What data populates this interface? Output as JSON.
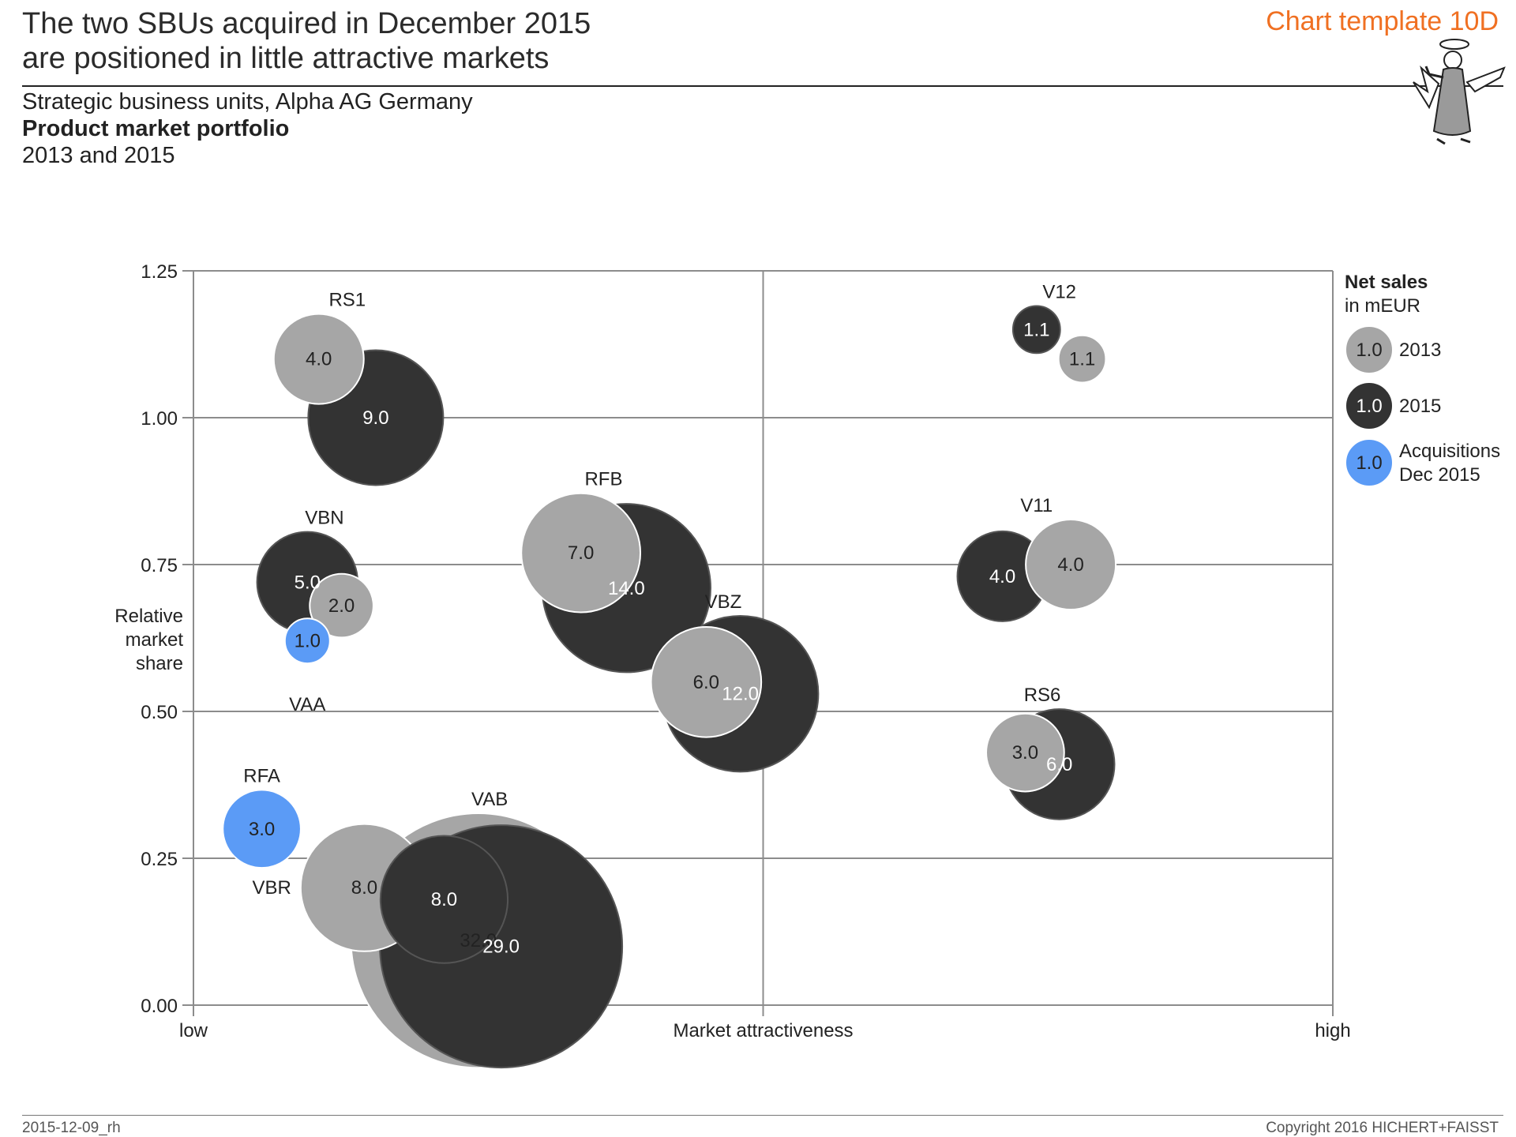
{
  "header": {
    "title_line1": "The two SBUs acquired in December 2015",
    "title_line2": "are positioned in little attractive markets",
    "template_label": "Chart template 10D",
    "subtitle_line1": "Strategic business units, Alpha AG Germany",
    "subtitle_line2": "Product market portfolio",
    "subtitle_line3": "2013 and 2015"
  },
  "footer": {
    "date_code": "2015-12-09_rh",
    "copyright": "Copyright 2016 HICHERT+FAISST"
  },
  "colors": {
    "y2013": "#a6a6a6",
    "y2015": "#333333",
    "acquisition": "#5b9bf6",
    "grid": "#8c8c8c"
  },
  "chart_data": {
    "type": "bubble",
    "title": "Product market portfolio",
    "xlabel": "Market attractiveness",
    "xlabel_low": "low",
    "xlabel_high": "high",
    "ylabel": [
      "Relative",
      "market",
      "share"
    ],
    "xlim": [
      0,
      1
    ],
    "ylim": [
      0,
      1.25
    ],
    "yticks": [
      "0.00",
      "0.25",
      "0.50",
      "0.75",
      "1.00",
      "1.25"
    ],
    "ytick_values": [
      0,
      0.25,
      0.5,
      0.75,
      1.0,
      1.25
    ],
    "size_measure": "Net sales in mEUR",
    "legend": {
      "title": "Net sales",
      "unit": "in mEUR",
      "sample_value": "1.0",
      "items": [
        {
          "kind": "y2013",
          "label_lines": [
            "2013"
          ]
        },
        {
          "kind": "y2015",
          "label_lines": [
            "2015"
          ]
        },
        {
          "kind": "acquisition",
          "label_lines": [
            "Acquisitions",
            "Dec 2015"
          ]
        }
      ]
    },
    "units": [
      {
        "name": "VAB",
        "label_pos": "above",
        "circles": [
          {
            "kind": "y2013",
            "x": 0.25,
            "y": 0.11,
            "value": 32.0,
            "label": "32.0"
          },
          {
            "kind": "y2015",
            "x": 0.27,
            "y": 0.1,
            "value": 29.0,
            "label": "29.0"
          }
        ]
      },
      {
        "name": "VBR",
        "label_pos": "left",
        "circles": [
          {
            "kind": "y2013",
            "x": 0.15,
            "y": 0.2,
            "value": 8.0,
            "label": "8.0"
          },
          {
            "kind": "y2015",
            "x": 0.22,
            "y": 0.18,
            "value": 8.0,
            "label": "8.0"
          }
        ]
      },
      {
        "name": "RFA",
        "label_pos": "above",
        "circles": [
          {
            "kind": "acquisition",
            "x": 0.06,
            "y": 0.3,
            "value": 3.0,
            "label": "3.0"
          }
        ]
      },
      {
        "name": "RS1",
        "label_pos": "above",
        "circles": [
          {
            "kind": "y2015",
            "x": 0.16,
            "y": 1.0,
            "value": 9.0,
            "label": "9.0"
          },
          {
            "kind": "y2013",
            "x": 0.11,
            "y": 1.1,
            "value": 4.0,
            "label": "4.0"
          }
        ]
      },
      {
        "name": "VBN",
        "label_pos": "above",
        "circles": [
          {
            "kind": "y2015",
            "x": 0.1,
            "y": 0.72,
            "value": 5.0,
            "label": "5.0"
          },
          {
            "kind": "y2013",
            "x": 0.13,
            "y": 0.68,
            "value": 2.0,
            "label": "2.0"
          }
        ]
      },
      {
        "name": "VAA",
        "label_pos": "below",
        "circles": [
          {
            "kind": "acquisition",
            "x": 0.1,
            "y": 0.62,
            "value": 1.0,
            "label": "1.0"
          }
        ]
      },
      {
        "name": "RFB",
        "label_pos": "above",
        "circles": [
          {
            "kind": "y2015",
            "x": 0.38,
            "y": 0.71,
            "value": 14.0,
            "label": "14.0"
          },
          {
            "kind": "y2013",
            "x": 0.34,
            "y": 0.77,
            "value": 7.0,
            "label": "7.0"
          }
        ]
      },
      {
        "name": "VBZ",
        "label_pos": "above",
        "circles": [
          {
            "kind": "y2015",
            "x": 0.48,
            "y": 0.53,
            "value": 12.0,
            "label": "12.0"
          },
          {
            "kind": "y2013",
            "x": 0.45,
            "y": 0.55,
            "value": 6.0,
            "label": "6.0"
          }
        ]
      },
      {
        "name": "V12",
        "label_pos": "above",
        "circles": [
          {
            "kind": "y2015",
            "x": 0.74,
            "y": 1.15,
            "value": 1.1,
            "label": "1.1"
          },
          {
            "kind": "y2013",
            "x": 0.78,
            "y": 1.1,
            "value": 1.1,
            "label": "1.1"
          }
        ]
      },
      {
        "name": "V11",
        "label_pos": "above",
        "circles": [
          {
            "kind": "y2015",
            "x": 0.71,
            "y": 0.73,
            "value": 4.0,
            "label": "4.0"
          },
          {
            "kind": "y2013",
            "x": 0.77,
            "y": 0.75,
            "value": 4.0,
            "label": "4.0"
          }
        ]
      },
      {
        "name": "RS6",
        "label_pos": "above",
        "circles": [
          {
            "kind": "y2015",
            "x": 0.76,
            "y": 0.41,
            "value": 6.0,
            "label": "6.0"
          },
          {
            "kind": "y2013",
            "x": 0.73,
            "y": 0.43,
            "value": 3.0,
            "label": "3.0"
          }
        ]
      }
    ]
  }
}
